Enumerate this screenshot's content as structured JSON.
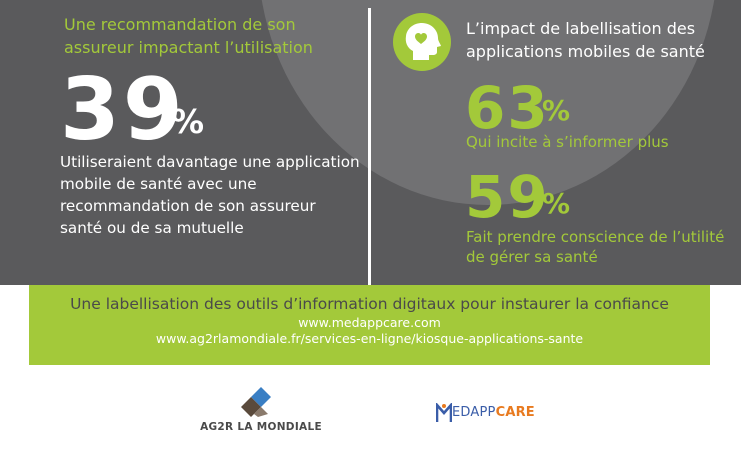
{
  "left": {
    "title": "Une recommandation de son assureur impactant l’utilisation",
    "big_number": "39",
    "percent_sign": "%",
    "description": "Utiliseraient davantage une application mobile de santé avec une recommandation de son assureur santé ou de sa mutuelle"
  },
  "right": {
    "title": "L’impact de labellisation des applications mobiles de santé",
    "icon": "head-with-heart-icon",
    "stat1": {
      "number": "63",
      "percent_sign": "%",
      "text": "Qui incite à s’informer plus"
    },
    "stat2": {
      "number": "59",
      "percent_sign": "%",
      "text": "Fait prendre conscience de l’utilité de gérer sa santé"
    }
  },
  "band": {
    "title": "Une labellisation des outils d’information digitaux pour instaurer la confiance",
    "link1": "www.medappcare.com",
    "link2": "www.ag2rlamondiale.fr/services-en-ligne/kiosque-applications-sante"
  },
  "logos": {
    "ag2r": "AG2R LA MONDIALE",
    "medappcare": {
      "part1": "EDAPP",
      "part2": "CARE"
    }
  },
  "colors": {
    "panel": "#5a5a5c",
    "accent": "#a3c93a",
    "circle": "#717173"
  }
}
